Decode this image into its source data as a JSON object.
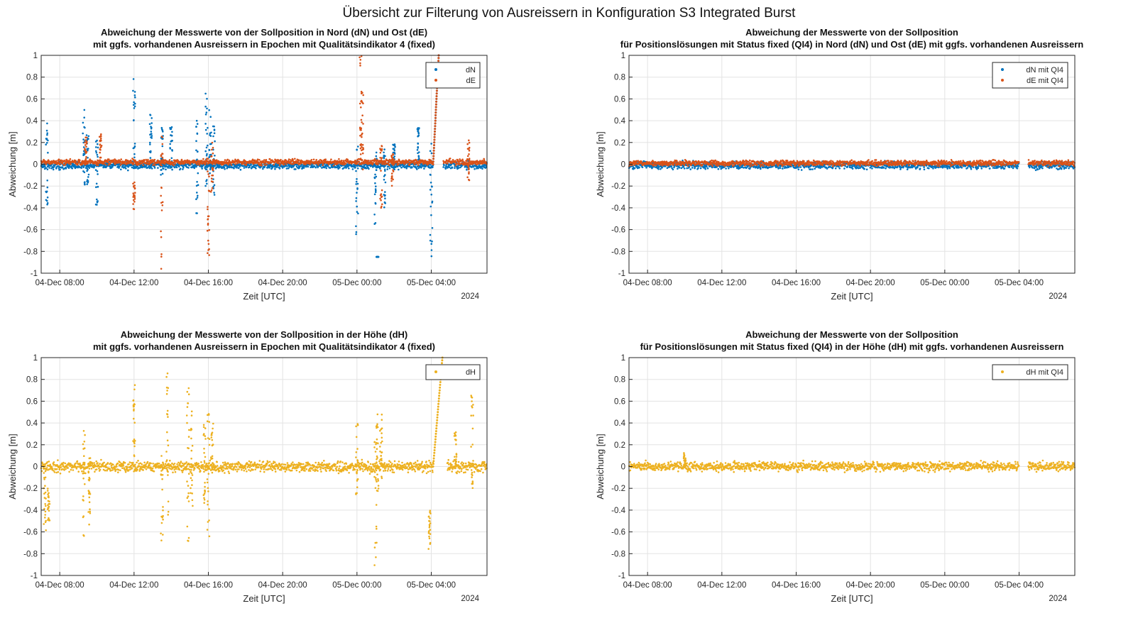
{
  "figure_title": "Übersicht zur Filterung von Ausreissern in Konfiguration S3 Integrated Burst",
  "colors": {
    "dN": "#0072BD",
    "dE": "#D95319",
    "dH": "#EDB120",
    "grid": "#e3e3e3",
    "axis": "#262626"
  },
  "chart_data": [
    {
      "type": "scatter",
      "title": [
        "Abweichung der Messwerte von der Sollposition in Nord (dN) und Ost (dE)",
        "mit ggfs. vorhandenen Ausreissern in Epochen mit Qualitätsindikator 4 (fixed)"
      ],
      "xlabel": "Zeit [UTC]",
      "ylabel": "Abweichung [m]",
      "year_label": "2024",
      "xlim_hours": [
        7.0,
        31.0
      ],
      "ylim": [
        -1,
        1
      ],
      "xticks": [
        {
          "h": 8,
          "label": "04-Dec 08:00"
        },
        {
          "h": 12,
          "label": "04-Dec 12:00"
        },
        {
          "h": 16,
          "label": "04-Dec 16:00"
        },
        {
          "h": 20,
          "label": "04-Dec 20:00"
        },
        {
          "h": 24,
          "label": "05-Dec 00:00"
        },
        {
          "h": 28,
          "label": "05-Dec 04:00"
        }
      ],
      "yticks": [
        -1,
        -0.8,
        -0.6,
        -0.4,
        -0.2,
        0,
        0.2,
        0.4,
        0.6,
        0.8,
        1
      ],
      "grid": true,
      "legend_position": "top-right",
      "series": [
        {
          "name": "dN",
          "color": "#0072BD",
          "noise": 0.02,
          "bias": -0.01,
          "gaps": [
            [
              28.7,
              28.75
            ]
          ],
          "spikes": [
            [
              7.3,
              -0.4,
              0.42
            ],
            [
              9.3,
              -0.2,
              0.5
            ],
            [
              9.5,
              -0.2,
              0.3
            ],
            [
              10.0,
              -0.38,
              0.25
            ],
            [
              12.0,
              -0.05,
              0.84
            ],
            [
              12.9,
              0.0,
              0.46
            ],
            [
              13.5,
              -0.1,
              0.35
            ],
            [
              14.0,
              -0.05,
              0.38
            ],
            [
              15.4,
              -0.48,
              0.43
            ],
            [
              15.9,
              -0.2,
              0.68
            ],
            [
              16.1,
              -0.1,
              0.5
            ],
            [
              16.3,
              -0.3,
              0.36
            ],
            [
              24.0,
              -0.65,
              0.18
            ],
            [
              25.0,
              -0.55,
              0.15
            ],
            [
              25.1,
              -0.85,
              -0.85
            ],
            [
              25.5,
              -0.4,
              0.15
            ],
            [
              26.0,
              -0.05,
              0.2
            ],
            [
              27.3,
              0.0,
              0.37
            ],
            [
              28.0,
              -0.88,
              0.28
            ]
          ],
          "ramp": [
            28.1,
            28.4,
            0.0,
            1.0
          ]
        },
        {
          "name": "dE",
          "color": "#D95319",
          "noise": 0.015,
          "bias": 0.02,
          "gaps": [
            [
              28.7,
              28.75
            ]
          ],
          "spikes": [
            [
              9.4,
              0.02,
              0.25
            ],
            [
              10.2,
              0.05,
              0.28
            ],
            [
              12.0,
              -0.42,
              -0.15
            ],
            [
              13.5,
              -1.0,
              0.3
            ],
            [
              16.0,
              -1.0,
              0.0
            ],
            [
              16.2,
              -0.3,
              0.2
            ],
            [
              24.2,
              0.0,
              1.0
            ],
            [
              24.3,
              -0.05,
              0.7
            ],
            [
              25.3,
              -0.4,
              0.2
            ],
            [
              25.9,
              -0.2,
              0.1
            ],
            [
              30.0,
              -0.15,
              0.22
            ]
          ],
          "ramp": [
            28.1,
            28.4,
            0.0,
            1.0
          ]
        }
      ]
    },
    {
      "type": "scatter",
      "title": [
        "Abweichung der Messwerte von der Sollposition",
        "für Positionslösungen mit Status fixed (QI4) in Nord (dN) und Ost (dE) mit ggfs. vorhandenen Ausreissern"
      ],
      "xlabel": "Zeit [UTC]",
      "ylabel": "Abweichung [m]",
      "year_label": "2024",
      "xlim_hours": [
        7.0,
        31.0
      ],
      "ylim": [
        -1,
        1
      ],
      "xticks": [
        {
          "h": 8,
          "label": "04-Dec 08:00"
        },
        {
          "h": 12,
          "label": "04-Dec 12:00"
        },
        {
          "h": 16,
          "label": "04-Dec 16:00"
        },
        {
          "h": 20,
          "label": "04-Dec 20:00"
        },
        {
          "h": 24,
          "label": "05-Dec 00:00"
        },
        {
          "h": 28,
          "label": "05-Dec 04:00"
        }
      ],
      "yticks": [
        -1,
        -0.8,
        -0.6,
        -0.4,
        -0.2,
        0,
        0.2,
        0.4,
        0.6,
        0.8,
        1
      ],
      "grid": true,
      "legend_position": "top-right",
      "series": [
        {
          "name": "dN mit QI4",
          "color": "#0072BD",
          "noise": 0.02,
          "bias": -0.01,
          "gaps": [
            [
              28.0,
              28.5
            ]
          ],
          "spikes": [],
          "ramp": null
        },
        {
          "name": "dE mit QI4",
          "color": "#D95319",
          "noise": 0.015,
          "bias": 0.01,
          "gaps": [
            [
              28.0,
              28.5
            ]
          ],
          "spikes": [],
          "ramp": null
        }
      ]
    },
    {
      "type": "scatter",
      "title": [
        "Abweichung der Messwerte von der Sollposition in der Höhe (dH)",
        "mit ggfs. vorhandenen Ausreissern in Epochen mit Qualitätsindikator 4 (fixed)"
      ],
      "xlabel": "Zeit [UTC]",
      "ylabel": "Abweichung [m]",
      "year_label": "2024",
      "xlim_hours": [
        7.0,
        31.0
      ],
      "ylim": [
        -1,
        1
      ],
      "xticks": [
        {
          "h": 8,
          "label": "04-Dec 08:00"
        },
        {
          "h": 12,
          "label": "04-Dec 12:00"
        },
        {
          "h": 16,
          "label": "04-Dec 16:00"
        },
        {
          "h": 20,
          "label": "04-Dec 20:00"
        },
        {
          "h": 24,
          "label": "05-Dec 00:00"
        },
        {
          "h": 28,
          "label": "05-Dec 04:00"
        }
      ],
      "yticks": [
        -1,
        -0.8,
        -0.6,
        -0.4,
        -0.2,
        0,
        0.2,
        0.4,
        0.6,
        0.8,
        1
      ],
      "grid": true,
      "legend_position": "top-right",
      "series": [
        {
          "name": "dH",
          "color": "#EDB120",
          "noise": 0.03,
          "bias": 0.0,
          "gaps": [
            [
              28.7,
              28.75
            ]
          ],
          "spikes": [
            [
              7.2,
              -0.6,
              0.0
            ],
            [
              7.4,
              -0.5,
              -0.2
            ],
            [
              9.3,
              -0.68,
              0.57
            ],
            [
              9.6,
              -0.55,
              0.08
            ],
            [
              12.0,
              -0.05,
              0.75
            ],
            [
              13.5,
              -0.68,
              0.1
            ],
            [
              13.8,
              -0.45,
              0.96
            ],
            [
              14.9,
              -0.72,
              0.76
            ],
            [
              15.1,
              -0.4,
              0.52
            ],
            [
              15.8,
              -0.35,
              0.4
            ],
            [
              16.0,
              -0.75,
              0.5
            ],
            [
              16.2,
              -0.1,
              0.4
            ],
            [
              24.0,
              -0.3,
              0.42
            ],
            [
              25.0,
              -0.95,
              0.25
            ],
            [
              25.1,
              -0.35,
              0.48
            ],
            [
              25.3,
              -0.15,
              0.5
            ],
            [
              27.9,
              -0.79,
              -0.4
            ],
            [
              29.3,
              -0.0,
              0.32
            ],
            [
              30.2,
              -0.2,
              0.66
            ]
          ],
          "ramp": [
            28.1,
            28.6,
            0.0,
            1.0
          ]
        }
      ]
    },
    {
      "type": "scatter",
      "title": [
        "Abweichung der Messwerte von der Sollposition",
        "für Positionslösungen mit Status fixed (QI4) in der Höhe (dH) mit ggfs. vorhandenen Ausreissern"
      ],
      "xlabel": "Zeit [UTC]",
      "ylabel": "Abweichung [m]",
      "year_label": "2024",
      "xlim_hours": [
        7.0,
        31.0
      ],
      "ylim": [
        -1,
        1
      ],
      "xticks": [
        {
          "h": 8,
          "label": "04-Dec 08:00"
        },
        {
          "h": 12,
          "label": "04-Dec 12:00"
        },
        {
          "h": 16,
          "label": "04-Dec 16:00"
        },
        {
          "h": 20,
          "label": "04-Dec 20:00"
        },
        {
          "h": 24,
          "label": "05-Dec 00:00"
        },
        {
          "h": 28,
          "label": "05-Dec 04:00"
        }
      ],
      "yticks": [
        -1,
        -0.8,
        -0.6,
        -0.4,
        -0.2,
        0,
        0.2,
        0.4,
        0.6,
        0.8,
        1
      ],
      "grid": true,
      "legend_position": "top-right",
      "series": [
        {
          "name": "dH mit QI4",
          "color": "#EDB120",
          "noise": 0.025,
          "bias": 0.0,
          "gaps": [
            [
              28.0,
              28.5
            ]
          ],
          "spikes": [
            [
              10.0,
              0.0,
              0.13
            ]
          ],
          "ramp": null
        }
      ]
    }
  ]
}
